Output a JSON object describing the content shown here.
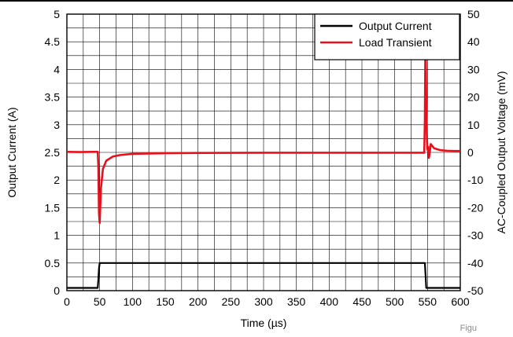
{
  "chart_data": {
    "type": "line",
    "x_axis": {
      "label": "Time (µs)",
      "range": [
        0,
        600
      ],
      "ticks": [
        "0",
        "50",
        "100",
        "150",
        "200",
        "250",
        "300",
        "350",
        "400",
        "450",
        "500",
        "550",
        "600"
      ]
    },
    "y_left": {
      "label": "Output Current (A)",
      "range": [
        0,
        5
      ],
      "ticks": [
        "0",
        "0.5",
        "1",
        "1.5",
        "2",
        "2.5",
        "3",
        "3.5",
        "4",
        "4.5",
        "5"
      ]
    },
    "y_right": {
      "label": "AC-Coupled Output Voltage (mV)",
      "range": [
        -50,
        50
      ],
      "ticks": [
        "-50",
        "-40",
        "-30",
        "-20",
        "-10",
        "0",
        "10",
        "20",
        "30",
        "40",
        "50"
      ]
    },
    "grid": true,
    "legend_position": "top-right",
    "series": [
      {
        "name": "Output Current",
        "color": "#000000",
        "axis": "left",
        "x": [
          0,
          47,
          48,
          49,
          50,
          546,
          547,
          548,
          600
        ],
        "y": [
          0.05,
          0.05,
          0.2,
          0.4,
          0.5,
          0.5,
          0.3,
          0.05,
          0.05
        ]
      },
      {
        "name": "Load Transient",
        "color": "#e8101a",
        "axis": "right",
        "x": [
          0,
          20,
          40,
          47,
          48,
          49,
          50,
          52,
          55,
          60,
          70,
          80,
          100,
          150,
          200,
          300,
          400,
          500,
          545,
          546,
          547,
          548,
          549,
          550,
          551,
          552,
          553,
          555,
          560,
          570,
          580,
          590,
          600
        ],
        "y": [
          0.2,
          0.1,
          0.2,
          0.2,
          -5,
          -22,
          -25.5,
          -13,
          -6,
          -3,
          -1.5,
          -1,
          -0.5,
          -0.3,
          -0.2,
          -0.1,
          -0.1,
          -0.1,
          -0.1,
          12,
          47,
          20,
          6,
          1,
          2,
          -2,
          -1,
          3,
          1.5,
          0.8,
          0.6,
          0.5,
          0.5
        ]
      }
    ]
  },
  "figure_label": "Figu"
}
